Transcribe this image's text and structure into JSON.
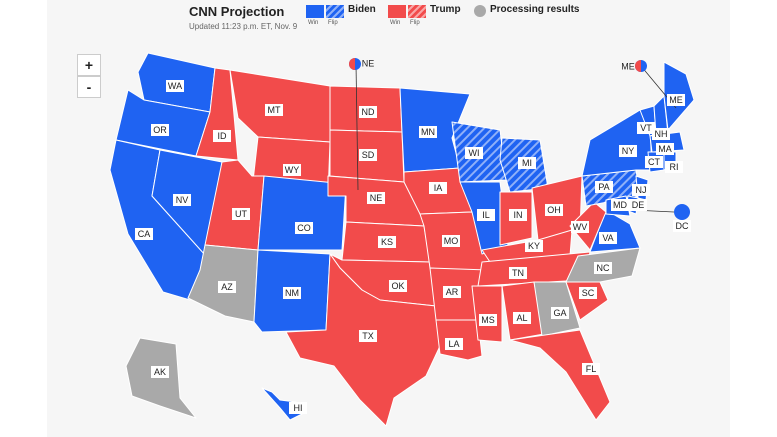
{
  "header": {
    "title": "CNN Projection",
    "updated": "Updated 11:23 p.m. ET, Nov. 9"
  },
  "legend": {
    "biden": "Biden",
    "trump": "Trump",
    "processing": "Processing results",
    "win": "Win",
    "flip": "Flip"
  },
  "controls": {
    "zoom_in": "+",
    "zoom_out": "-"
  },
  "colors": {
    "biden": "#1f63f2",
    "trump": "#f24b4b",
    "processing": "#a9a9a9",
    "background": "#f6f6f6"
  },
  "states": [
    {
      "id": "WA",
      "status": "biden"
    },
    {
      "id": "OR",
      "status": "biden"
    },
    {
      "id": "CA",
      "status": "biden"
    },
    {
      "id": "NV",
      "status": "biden"
    },
    {
      "id": "ID",
      "status": "trump"
    },
    {
      "id": "MT",
      "status": "trump"
    },
    {
      "id": "WY",
      "status": "trump"
    },
    {
      "id": "UT",
      "status": "trump"
    },
    {
      "id": "AZ",
      "status": "processing"
    },
    {
      "id": "CO",
      "status": "biden"
    },
    {
      "id": "NM",
      "status": "biden"
    },
    {
      "id": "ND",
      "status": "trump"
    },
    {
      "id": "SD",
      "status": "trump"
    },
    {
      "id": "NE",
      "status": "trump"
    },
    {
      "id": "KS",
      "status": "trump"
    },
    {
      "id": "OK",
      "status": "trump"
    },
    {
      "id": "TX",
      "status": "trump"
    },
    {
      "id": "MN",
      "status": "biden"
    },
    {
      "id": "IA",
      "status": "trump"
    },
    {
      "id": "MO",
      "status": "trump"
    },
    {
      "id": "AR",
      "status": "trump"
    },
    {
      "id": "LA",
      "status": "trump"
    },
    {
      "id": "WI",
      "status": "biden-flip"
    },
    {
      "id": "IL",
      "status": "biden"
    },
    {
      "id": "MI",
      "status": "biden-flip"
    },
    {
      "id": "IN",
      "status": "trump"
    },
    {
      "id": "OH",
      "status": "trump"
    },
    {
      "id": "KY",
      "status": "trump"
    },
    {
      "id": "TN",
      "status": "trump"
    },
    {
      "id": "MS",
      "status": "trump"
    },
    {
      "id": "AL",
      "status": "trump"
    },
    {
      "id": "GA",
      "status": "processing"
    },
    {
      "id": "FL",
      "status": "trump"
    },
    {
      "id": "SC",
      "status": "trump"
    },
    {
      "id": "NC",
      "status": "processing"
    },
    {
      "id": "VA",
      "status": "biden"
    },
    {
      "id": "WV",
      "status": "trump"
    },
    {
      "id": "PA",
      "status": "biden-flip"
    },
    {
      "id": "NY",
      "status": "biden"
    },
    {
      "id": "VT",
      "status": "biden"
    },
    {
      "id": "NH",
      "status": "biden"
    },
    {
      "id": "ME",
      "status": "biden"
    },
    {
      "id": "MA",
      "status": "biden"
    },
    {
      "id": "CT",
      "status": "biden"
    },
    {
      "id": "RI",
      "status": "biden"
    },
    {
      "id": "NJ",
      "status": "biden"
    },
    {
      "id": "DE",
      "status": "biden"
    },
    {
      "id": "MD",
      "status": "biden"
    },
    {
      "id": "DC",
      "status": "biden"
    },
    {
      "id": "AK",
      "status": "processing"
    },
    {
      "id": "HI",
      "status": "biden"
    }
  ],
  "split_labels": {
    "ne": "NE",
    "me": "ME"
  }
}
